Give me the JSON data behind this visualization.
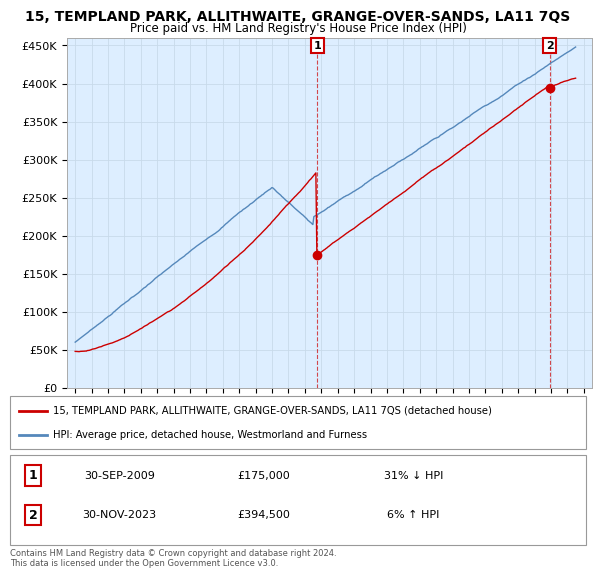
{
  "title": "15, TEMPLAND PARK, ALLITHWAITE, GRANGE-OVER-SANDS, LA11 7QS",
  "subtitle": "Price paid vs. HM Land Registry's House Price Index (HPI)",
  "ylabel_ticks": [
    "£0",
    "£50K",
    "£100K",
    "£150K",
    "£200K",
    "£250K",
    "£300K",
    "£350K",
    "£400K",
    "£450K"
  ],
  "ytick_values": [
    0,
    50000,
    100000,
    150000,
    200000,
    250000,
    300000,
    350000,
    400000,
    450000
  ],
  "ylim": [
    0,
    460000
  ],
  "xlim_start": 1994.5,
  "xlim_end": 2026.5,
  "background_color": "#ffffff",
  "grid_color": "#c8daea",
  "plot_bg_color": "#ddeeff",
  "red_color": "#cc0000",
  "blue_color": "#5588bb",
  "sale1_date": 2009.75,
  "sale1_price": 175000,
  "sale2_date": 2023.917,
  "sale2_price": 394500,
  "legend_line1": "15, TEMPLAND PARK, ALLITHWAITE, GRANGE-OVER-SANDS, LA11 7QS (detached house)",
  "legend_line2": "HPI: Average price, detached house, Westmorland and Furness",
  "ann1_date_str": "30-SEP-2009",
  "ann1_price_str": "£175,000",
  "ann1_hpi_str": "31% ↓ HPI",
  "ann2_date_str": "30-NOV-2023",
  "ann2_price_str": "£394,500",
  "ann2_hpi_str": "6% ↑ HPI",
  "footer": "Contains HM Land Registry data © Crown copyright and database right 2024.\nThis data is licensed under the Open Government Licence v3.0."
}
